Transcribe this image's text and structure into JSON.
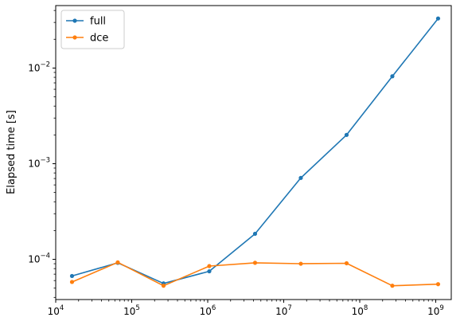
{
  "chart_data": {
    "type": "line",
    "title": "",
    "xlabel": "",
    "ylabel": "Elapsed time [s]",
    "x_scale": "log",
    "y_scale": "log",
    "xlim": [
      10000,
      1600000000
    ],
    "ylim": [
      3.8e-05,
      0.045
    ],
    "x_ticks": [
      {
        "value": 10000,
        "base": "10",
        "exp": "4"
      },
      {
        "value": 100000,
        "base": "10",
        "exp": "5"
      },
      {
        "value": 1000000,
        "base": "10",
        "exp": "6"
      },
      {
        "value": 10000000,
        "base": "10",
        "exp": "7"
      },
      {
        "value": 100000000,
        "base": "10",
        "exp": "8"
      },
      {
        "value": 1000000000,
        "base": "10",
        "exp": "9"
      }
    ],
    "y_ticks": [
      {
        "value": 0.0001,
        "base": "10",
        "exp": "−4"
      },
      {
        "value": 0.001,
        "base": "10",
        "exp": "−3"
      },
      {
        "value": 0.01,
        "base": "10",
        "exp": "−2"
      }
    ],
    "grid": false,
    "legend_position": "top-left",
    "x": [
      16384,
      65536,
      262144,
      1048576,
      4194304,
      16777216,
      67108864,
      268435456,
      1073741824
    ],
    "series": [
      {
        "name": "full",
        "color": "#1f77b4",
        "values": [
          6.7e-05,
          9.2e-05,
          5.6e-05,
          7.5e-05,
          0.000185,
          0.00071,
          0.002,
          0.0082,
          0.033
        ]
      },
      {
        "name": "dce",
        "color": "#ff7f0e",
        "values": [
          5.8e-05,
          9.3e-05,
          5.3e-05,
          8.5e-05,
          9.2e-05,
          9e-05,
          9.1e-05,
          5.3e-05,
          5.5e-05
        ]
      }
    ]
  }
}
